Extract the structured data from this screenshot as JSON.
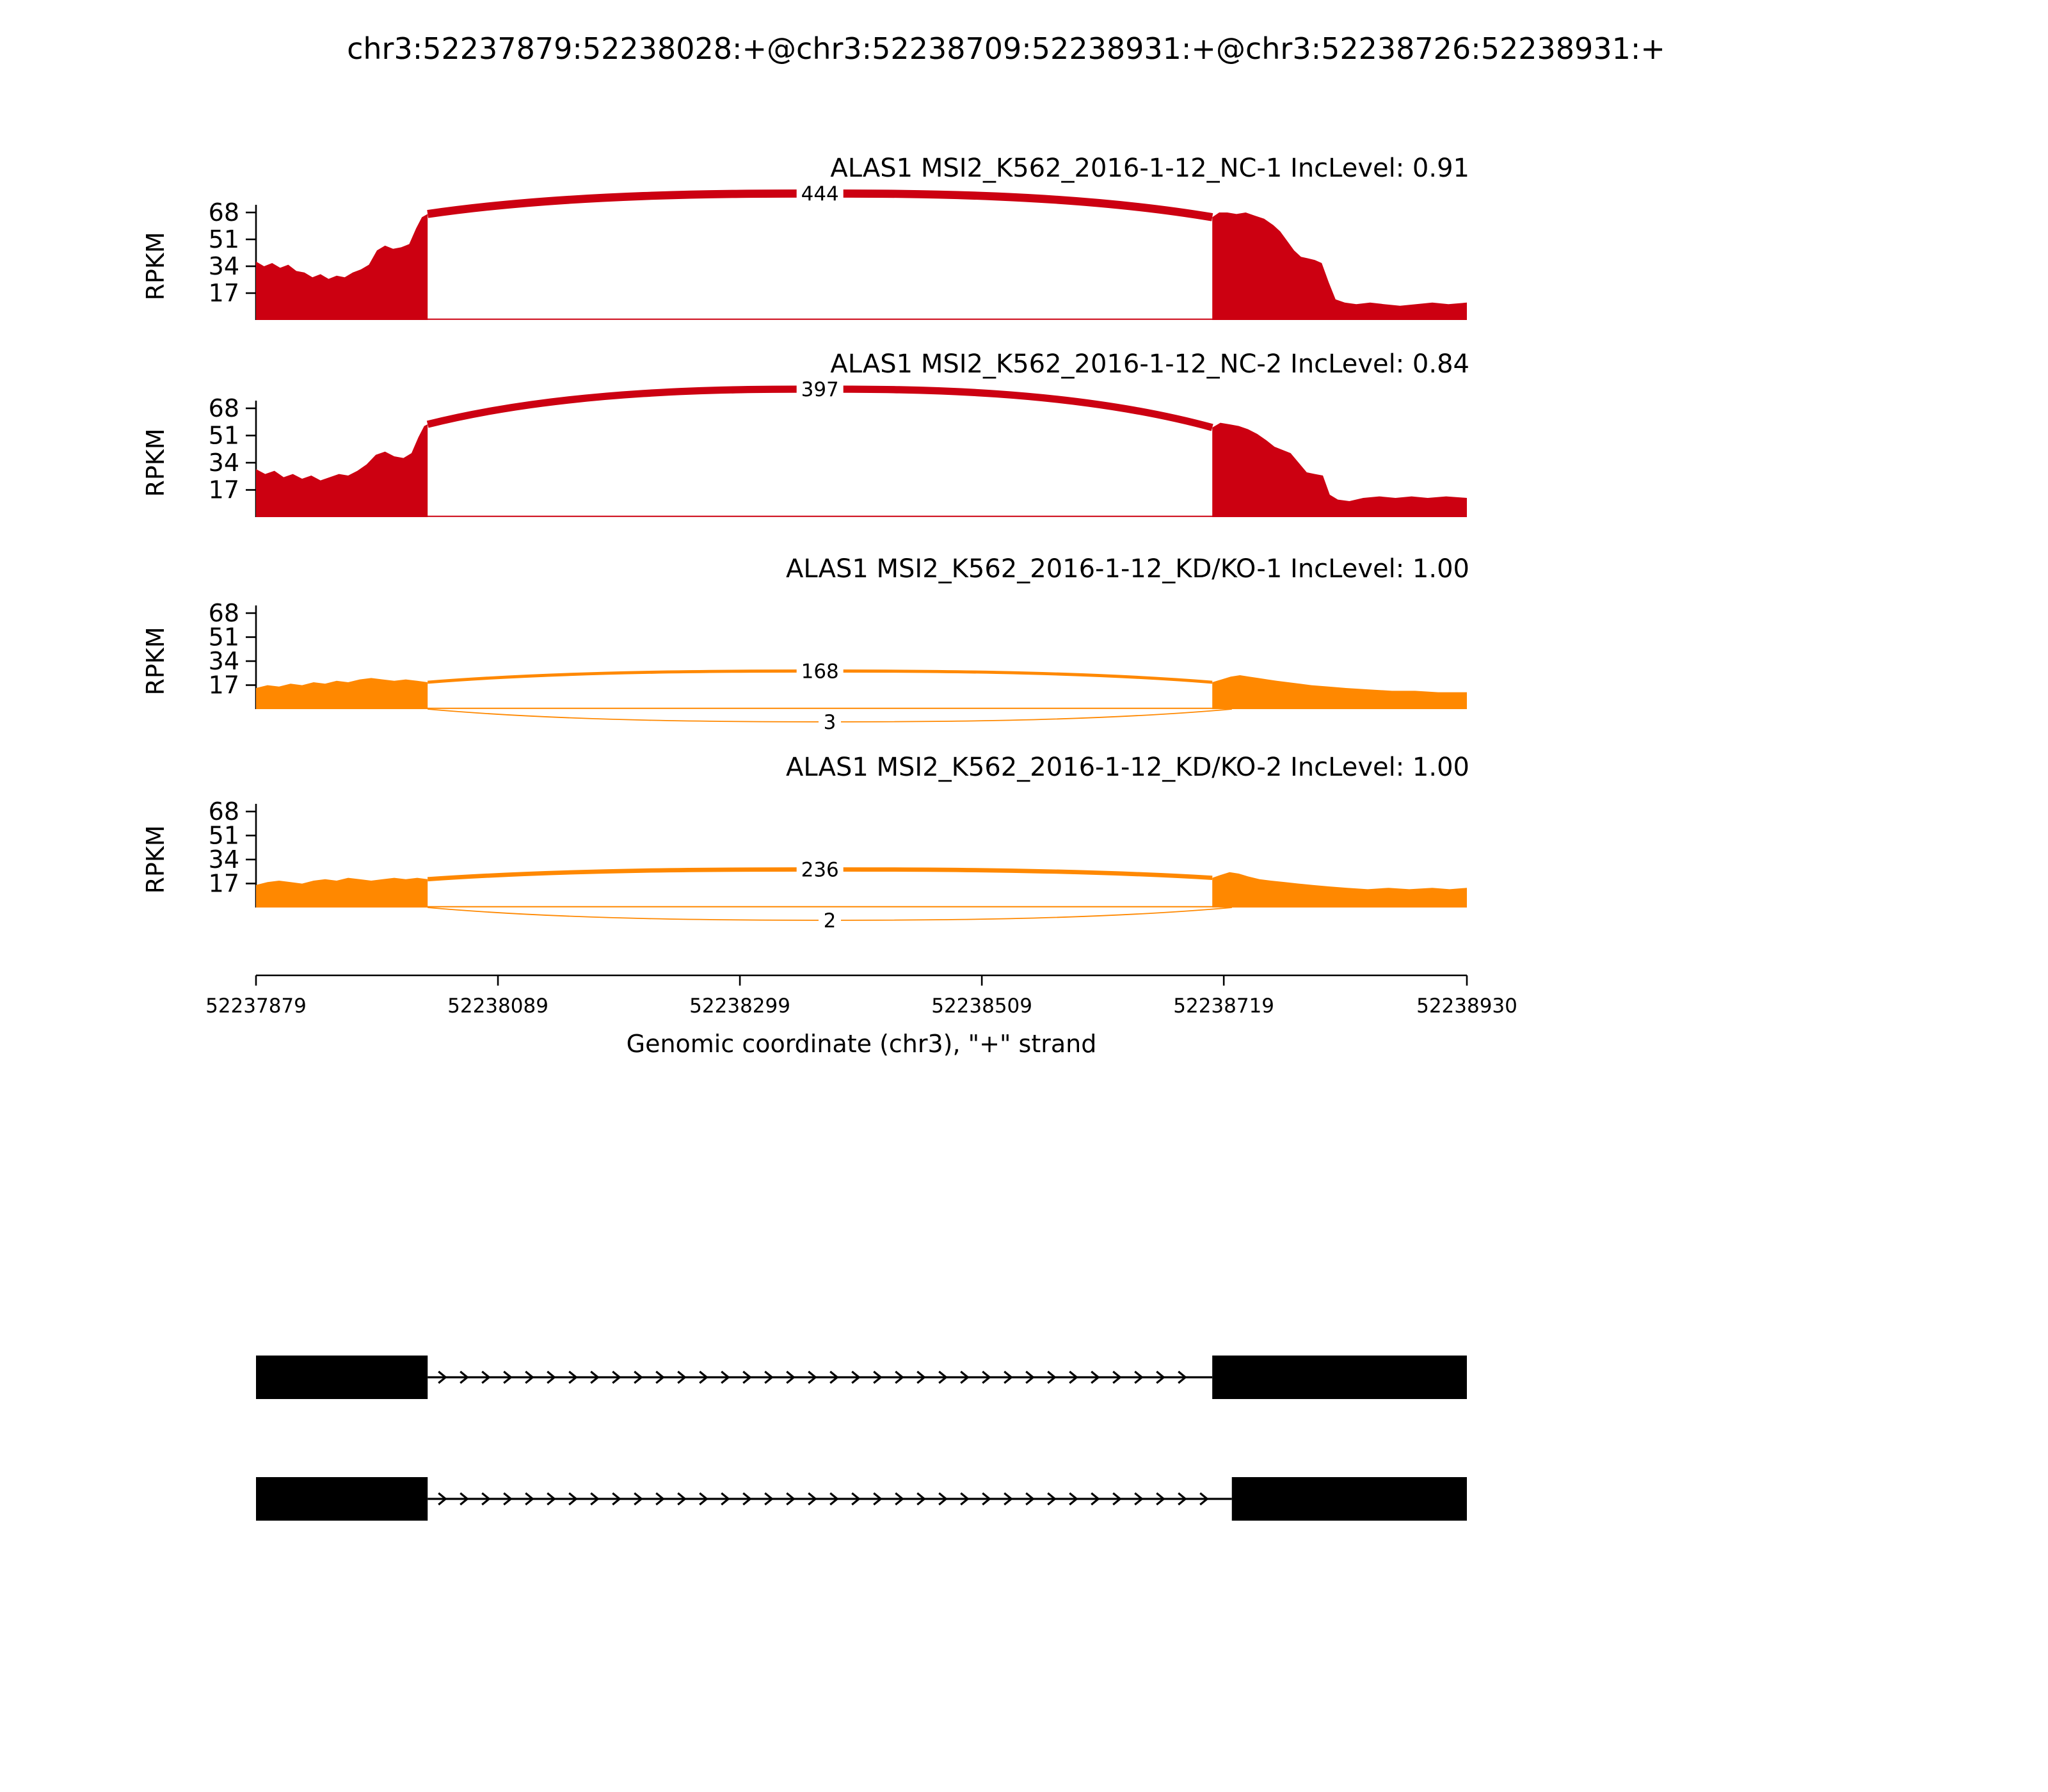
{
  "figure": {
    "title": "chr3:52237879:52238028:+@chr3:52238709:52238931:+@chr3:52238726:52238931:+"
  },
  "chart_data": {
    "type": "area",
    "variant": "sashimi-plot",
    "x_domain": [
      52237879,
      52238930
    ],
    "xlabel": "Genomic coordinate (chr3), \"+\" strand",
    "ylabel": "RPKM",
    "y_ticks": [
      17,
      34,
      51,
      68
    ],
    "x_ticks": [
      52237879,
      52238089,
      52238299,
      52238509,
      52238719,
      52238930
    ],
    "colors": {
      "nc": "#CC0011",
      "kd": "#FF8800",
      "transcript": "#000000"
    },
    "tracks": [
      {
        "label": "ALAS1 MSI2_K562_2016-1-12_NC-1 IncLevel: 0.91",
        "inc_level": 0.91,
        "color": "#CC0011",
        "coverage": [
          [
            [
              52237879,
              37
            ],
            [
              52237886,
              34
            ],
            [
              52237893,
              36
            ],
            [
              52237900,
              33
            ],
            [
              52237907,
              35
            ],
            [
              52237914,
              31
            ],
            [
              52237921,
              30
            ],
            [
              52237928,
              27
            ],
            [
              52237935,
              29
            ],
            [
              52237942,
              26
            ],
            [
              52237949,
              28
            ],
            [
              52237956,
              27
            ],
            [
              52237963,
              30
            ],
            [
              52237970,
              32
            ],
            [
              52237977,
              35
            ],
            [
              52237984,
              44
            ],
            [
              52237991,
              47
            ],
            [
              52237998,
              45
            ],
            [
              52238005,
              46
            ],
            [
              52238012,
              48
            ],
            [
              52238018,
              58
            ],
            [
              52238023,
              65
            ],
            [
              52238028,
              67
            ]
          ],
          [
            [
              52238709,
              65
            ],
            [
              52238715,
              68
            ],
            [
              52238722,
              68
            ],
            [
              52238730,
              67
            ],
            [
              52238738,
              68
            ],
            [
              52238746,
              66
            ],
            [
              52238754,
              64
            ],
            [
              52238762,
              60
            ],
            [
              52238768,
              56
            ],
            [
              52238774,
              50
            ],
            [
              52238780,
              44
            ],
            [
              52238786,
              40
            ],
            [
              52238792,
              39
            ],
            [
              52238798,
              38
            ],
            [
              52238804,
              36
            ],
            [
              52238810,
              24
            ],
            [
              52238816,
              13
            ],
            [
              52238824,
              11
            ],
            [
              52238834,
              10
            ],
            [
              52238846,
              11
            ],
            [
              52238858,
              10
            ],
            [
              52238872,
              9
            ],
            [
              52238886,
              10
            ],
            [
              52238900,
              11
            ],
            [
              52238914,
              10
            ],
            [
              52238930,
              11
            ]
          ]
        ],
        "junctions": [
          {
            "from": 52238028,
            "to": 52238709,
            "count": 444,
            "side": "top",
            "apex_rpkm": 80,
            "start_rpkm": 67,
            "end_rpkm": 65
          }
        ]
      },
      {
        "label": "ALAS1 MSI2_K562_2016-1-12_NC-2 IncLevel: 0.84",
        "inc_level": 0.84,
        "color": "#CC0011",
        "coverage": [
          [
            [
              52237879,
              30
            ],
            [
              52237887,
              27
            ],
            [
              52237895,
              29
            ],
            [
              52237903,
              25
            ],
            [
              52237911,
              27
            ],
            [
              52237919,
              24
            ],
            [
              52237927,
              26
            ],
            [
              52237935,
              23
            ],
            [
              52237943,
              25
            ],
            [
              52237951,
              27
            ],
            [
              52237959,
              26
            ],
            [
              52237967,
              29
            ],
            [
              52237975,
              33
            ],
            [
              52237983,
              39
            ],
            [
              52237991,
              41
            ],
            [
              52237999,
              38
            ],
            [
              52238007,
              37
            ],
            [
              52238014,
              40
            ],
            [
              52238020,
              50
            ],
            [
              52238025,
              57
            ],
            [
              52238028,
              58
            ]
          ],
          [
            [
              52238709,
              56
            ],
            [
              52238716,
              59
            ],
            [
              52238724,
              58
            ],
            [
              52238732,
              57
            ],
            [
              52238740,
              55
            ],
            [
              52238748,
              52
            ],
            [
              52238756,
              48
            ],
            [
              52238763,
              44
            ],
            [
              52238770,
              42
            ],
            [
              52238777,
              40
            ],
            [
              52238784,
              34
            ],
            [
              52238791,
              28
            ],
            [
              52238798,
              27
            ],
            [
              52238805,
              26
            ],
            [
              52238811,
              14
            ],
            [
              52238818,
              11
            ],
            [
              52238828,
              10
            ],
            [
              52238840,
              12
            ],
            [
              52238854,
              13
            ],
            [
              52238868,
              12
            ],
            [
              52238882,
              13
            ],
            [
              52238896,
              12
            ],
            [
              52238912,
              13
            ],
            [
              52238930,
              12
            ]
          ]
        ],
        "junctions": [
          {
            "from": 52238028,
            "to": 52238709,
            "count": 397,
            "side": "top",
            "apex_rpkm": 80,
            "start_rpkm": 58,
            "end_rpkm": 56
          }
        ]
      },
      {
        "label": "ALAS1 MSI2_K562_2016-1-12_KD/KO-1 IncLevel: 1.00",
        "inc_level": 1.0,
        "color": "#FF8800",
        "coverage": [
          [
            [
              52237879,
              15
            ],
            [
              52237889,
              17
            ],
            [
              52237899,
              16
            ],
            [
              52237909,
              18
            ],
            [
              52237919,
              17
            ],
            [
              52237929,
              19
            ],
            [
              52237939,
              18
            ],
            [
              52237949,
              20
            ],
            [
              52237959,
              19
            ],
            [
              52237969,
              21
            ],
            [
              52237979,
              22
            ],
            [
              52237989,
              21
            ],
            [
              52237999,
              20
            ],
            [
              52238009,
              21
            ],
            [
              52238019,
              20
            ],
            [
              52238028,
              19
            ]
          ],
          [
            [
              52238709,
              19
            ],
            [
              52238717,
              21
            ],
            [
              52238725,
              23
            ],
            [
              52238733,
              24
            ],
            [
              52238741,
              23
            ],
            [
              52238749,
              22
            ],
            [
              52238757,
              21
            ],
            [
              52238765,
              20
            ],
            [
              52238775,
              19
            ],
            [
              52238785,
              18
            ],
            [
              52238795,
              17
            ],
            [
              52238810,
              16
            ],
            [
              52238825,
              15
            ],
            [
              52238845,
              14
            ],
            [
              52238865,
              13
            ],
            [
              52238885,
              13
            ],
            [
              52238905,
              12
            ],
            [
              52238930,
              12
            ]
          ]
        ],
        "junctions": [
          {
            "from": 52238028,
            "to": 52238709,
            "count": 168,
            "side": "top",
            "apex_rpkm": 27,
            "start_rpkm": 19,
            "end_rpkm": 19
          },
          {
            "from": 52238028,
            "to": 52238726,
            "count": 3,
            "side": "bottom",
            "apex_rpkm": -9,
            "start_rpkm": 0,
            "end_rpkm": 0
          }
        ]
      },
      {
        "label": "ALAS1 MSI2_K562_2016-1-12_KD/KO-2 IncLevel: 1.00",
        "inc_level": 1.0,
        "color": "#FF8800",
        "coverage": [
          [
            [
              52237879,
              16
            ],
            [
              52237889,
              18
            ],
            [
              52237899,
              19
            ],
            [
              52237909,
              18
            ],
            [
              52237919,
              17
            ],
            [
              52237929,
              19
            ],
            [
              52237939,
              20
            ],
            [
              52237949,
              19
            ],
            [
              52237959,
              21
            ],
            [
              52237969,
              20
            ],
            [
              52237979,
              19
            ],
            [
              52237989,
              20
            ],
            [
              52237999,
              21
            ],
            [
              52238009,
              20
            ],
            [
              52238019,
              21
            ],
            [
              52238028,
              20
            ]
          ],
          [
            [
              52238709,
              21
            ],
            [
              52238716,
              23
            ],
            [
              52238724,
              25
            ],
            [
              52238732,
              24
            ],
            [
              52238740,
              22
            ],
            [
              52238750,
              20
            ],
            [
              52238760,
              19
            ],
            [
              52238772,
              18
            ],
            [
              52238784,
              17
            ],
            [
              52238796,
              16
            ],
            [
              52238810,
              15
            ],
            [
              52238826,
              14
            ],
            [
              52238844,
              13
            ],
            [
              52238862,
              14
            ],
            [
              52238880,
              13
            ],
            [
              52238900,
              14
            ],
            [
              52238915,
              13
            ],
            [
              52238930,
              14
            ]
          ]
        ],
        "junctions": [
          {
            "from": 52238028,
            "to": 52238709,
            "count": 236,
            "side": "top",
            "apex_rpkm": 27,
            "start_rpkm": 20,
            "end_rpkm": 21
          },
          {
            "from": 52238028,
            "to": 52238726,
            "count": 2,
            "side": "bottom",
            "apex_rpkm": -9,
            "start_rpkm": 0,
            "end_rpkm": 0
          }
        ]
      }
    ],
    "transcripts": [
      {
        "exons": [
          [
            52237879,
            52238028
          ],
          [
            52238709,
            52238930
          ]
        ]
      },
      {
        "exons": [
          [
            52237879,
            52238028
          ],
          [
            52238726,
            52238930
          ]
        ]
      }
    ]
  }
}
